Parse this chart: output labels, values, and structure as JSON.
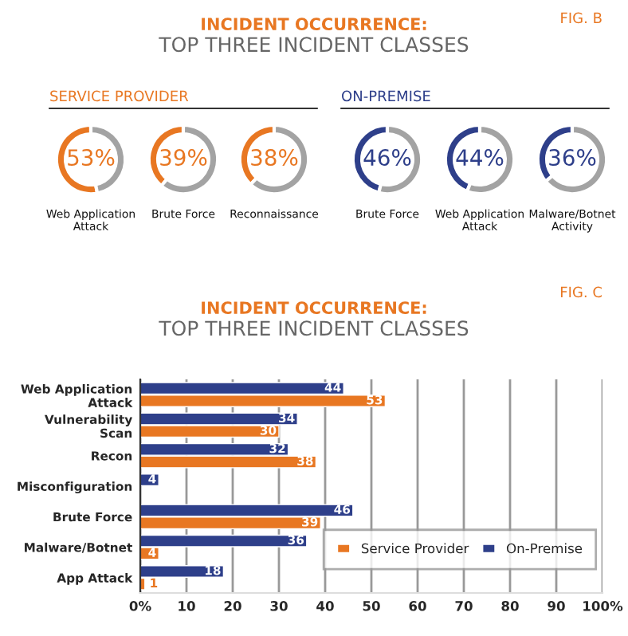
{
  "chart_data": [
    {
      "type": "donut",
      "title": "INCIDENT OCCURRENCE:",
      "subtitle": "TOP THREE INCIDENT CLASSES",
      "annotations": [
        "FIG. B",
        "SERVICE PROVIDER"
      ],
      "xlabel": "Web Application Attack",
      "categories": [
        null,
        null
      ],
      "values": [
        53,
        47
      ],
      "value_labels": [
        "53%",
        null
      ],
      "colors": [
        "#e87722",
        "#a3a3a3"
      ]
    },
    {
      "type": "donut",
      "xlabel": "Brute Force",
      "categories": [
        null,
        null
      ],
      "values": [
        39,
        61
      ],
      "value_labels": [
        "39%",
        null
      ],
      "colors": [
        "#e87722",
        "#a3a3a3"
      ]
    },
    {
      "type": "donut",
      "xlabel": "Reconnaissance",
      "categories": [
        null,
        null
      ],
      "values": [
        38,
        62
      ],
      "value_labels": [
        "38%",
        null
      ],
      "colors": [
        "#e87722",
        "#a3a3a3"
      ]
    },
    {
      "type": "donut",
      "annotations": [
        "ON-PREMISE"
      ],
      "xlabel": "Brute Force",
      "categories": [
        null,
        null
      ],
      "values": [
        46,
        54
      ],
      "value_labels": [
        "46%",
        null
      ],
      "colors": [
        "#2e3f8a",
        "#a3a3a3"
      ]
    },
    {
      "type": "donut",
      "xlabel": "Web Application Attack",
      "categories": [
        null,
        null
      ],
      "values": [
        44,
        56
      ],
      "value_labels": [
        "44%",
        null
      ],
      "colors": [
        "#2e3f8a",
        "#a3a3a3"
      ]
    },
    {
      "type": "donut",
      "xlabel": "Malware/Botnet Activity",
      "categories": [
        null,
        null
      ],
      "values": [
        36,
        64
      ],
      "value_labels": [
        "36%",
        null
      ],
      "colors": [
        "#2e3f8a",
        "#a3a3a3"
      ]
    },
    {
      "type": "bar",
      "orientation": "horizontal",
      "title": "INCIDENT OCCURRENCE:",
      "subtitle": "TOP THREE INCIDENT CLASSES",
      "annotations": [
        "FIG. C"
      ],
      "categories": [
        "Web Application Attack",
        "Vulnerability Scan",
        "Recon",
        "Misconfiguration",
        "Brute Force",
        "Malware/Botnet",
        "App Attack"
      ],
      "series": [
        {
          "name": "Service Provider",
          "color": "#e87722",
          "values": [
            53,
            30,
            38,
            null,
            39,
            4,
            1
          ]
        },
        {
          "name": "On-Premise",
          "color": "#2e3f8a",
          "values": [
            44,
            34,
            32,
            4,
            46,
            36,
            18
          ]
        }
      ],
      "xlim": [
        0,
        100
      ],
      "xticks": [
        {
          "value": 0,
          "label": "0%"
        },
        10,
        20,
        30,
        40,
        50,
        60,
        70,
        80,
        90,
        {
          "value": 100,
          "label": "100%"
        }
      ],
      "grid": "x",
      "legend": "bottom right",
      "data_labels": true
    }
  ]
}
